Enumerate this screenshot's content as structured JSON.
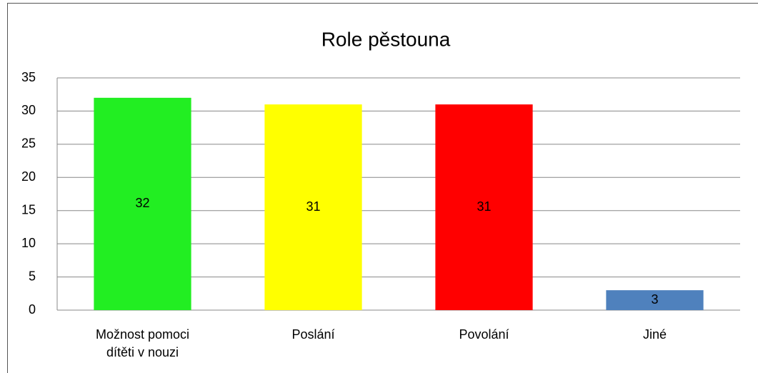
{
  "chart_data": {
    "type": "bar",
    "title": "Role pěstouna",
    "categories": [
      "Možnost pomoci dítěti v nouzi",
      "Poslání",
      "Povolání",
      "Jiné"
    ],
    "values": [
      32,
      31,
      31,
      3
    ],
    "colors": [
      "#22ee22",
      "#ffff00",
      "#ff0000",
      "#4f81bd"
    ],
    "ylim": [
      0,
      35
    ],
    "yticks": [
      0,
      5,
      10,
      15,
      20,
      25,
      30,
      35
    ],
    "grid": true
  }
}
